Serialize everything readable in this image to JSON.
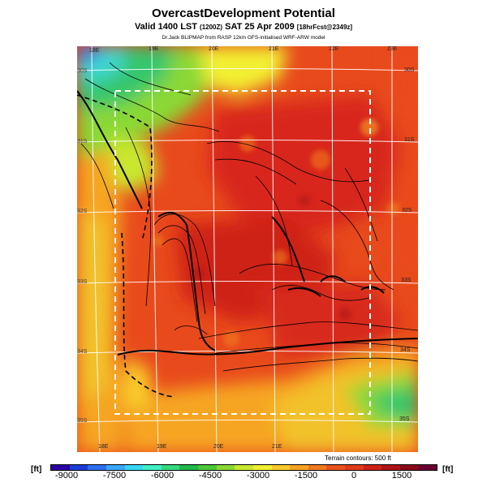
{
  "header": {
    "title": "OvercastDevelopment Potential",
    "subtitle_main": "Valid 1400 LST",
    "subtitle_small": "(1200Z)",
    "subtitle_date": "SAT 25 Apr 2009",
    "subtitle_fcst": "[18hrFcst@2349z]",
    "credit": "Dr.Jack BLIPMAP from RASP 12km GFS-initialised WRF-ARW model"
  },
  "map": {
    "top_lon_labels": [
      "18E",
      "19E",
      "20E",
      "21E",
      "22E",
      "23E"
    ],
    "bottom_lon_labels": [
      "18E",
      "19E",
      "20E",
      "21E"
    ],
    "left_lat_labels": [
      "30S",
      "31S",
      "32S",
      "33S",
      "34S",
      "35S"
    ],
    "right_lat_labels": [
      "30S",
      "31S",
      "32S",
      "33S",
      "34S",
      "35S"
    ],
    "terrain_note": "Terrain contours: 500 ft"
  },
  "legend": {
    "unit_left": "[ft]",
    "unit_right": "[ft]",
    "ticks": [
      "-9000",
      "-7500",
      "-6000",
      "-4500",
      "-3000",
      "-1500",
      "0",
      "1500"
    ],
    "scale_colors": [
      "#2a00a8",
      "#1c3cd8",
      "#2f6ff0",
      "#3aa8f8",
      "#38d6f2",
      "#3ff0c4",
      "#34d97c",
      "#22b84a",
      "#4cc83a",
      "#8ad834",
      "#c8e82e",
      "#f2ef30",
      "#f8c82a",
      "#f6a224",
      "#f07a1e",
      "#ea521c",
      "#e03a1a",
      "#d12018",
      "#b01416",
      "#8a0a1a",
      "#6a0030"
    ]
  }
}
